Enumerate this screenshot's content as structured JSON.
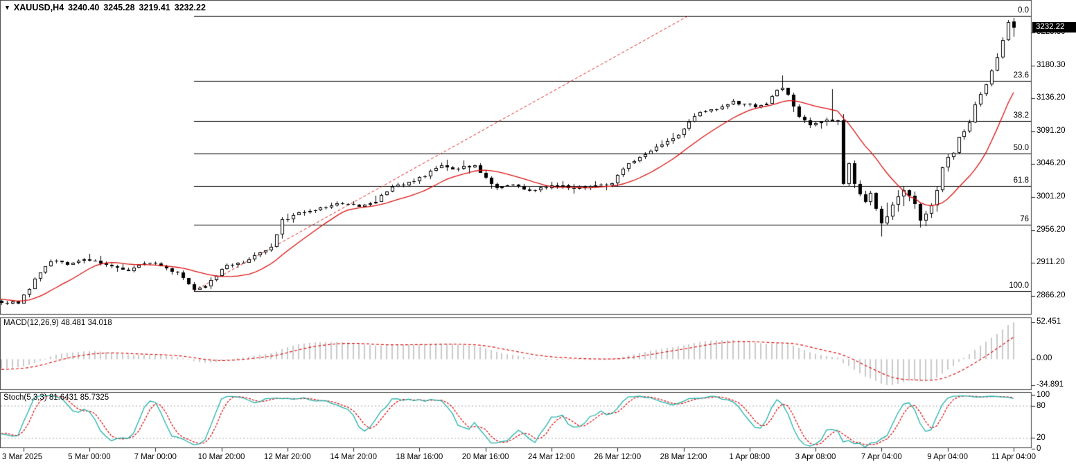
{
  "header": {
    "collapse_icon": "▼",
    "symbol_period": "XAUUSD,H4",
    "open": "3240.40",
    "high": "3245.28",
    "low": "3219.41",
    "close": "3232.22"
  },
  "chart_data": {
    "type": "candlestick",
    "symbol": "XAUUSD",
    "timeframe": "H4",
    "price_tag": "3232.22",
    "last_candle": {
      "open": 3240.4,
      "high": 3245.28,
      "low": 3219.41,
      "close": 3232.22
    },
    "price_axis": {
      "labels": [
        "3225.30",
        "3180.30",
        "3136.20",
        "3091.20",
        "3046.20",
        "3001.20",
        "2956.20",
        "2911.20",
        "2866.20"
      ],
      "ylim": [
        2843.6,
        3270.0
      ]
    },
    "time_axis": {
      "labels": [
        "3 Mar 2025",
        "5 Mar 00:00",
        "7 Mar 00:00",
        "10 Mar 20:00",
        "12 Mar 20:00",
        "14 Mar 20:00",
        "18 Mar 16:00",
        "20 Mar 16:00",
        "24 Mar 12:00",
        "26 Mar 12:00",
        "28 Mar 12:00",
        "1 Apr 08:00",
        "3 Apr 08:00",
        "7 Apr 04:00",
        "9 Apr 04:00",
        "11 Apr 04:00"
      ],
      "bars_per_tick": 12
    },
    "bars": {
      "first": -4,
      "last": 180
    },
    "price_path_anchors": [
      [
        -4,
        2858
      ],
      [
        -1,
        2856
      ],
      [
        0,
        2866
      ],
      [
        3,
        2900
      ],
      [
        5,
        2913
      ],
      [
        8,
        2910
      ],
      [
        11,
        2918
      ],
      [
        14,
        2912
      ],
      [
        17,
        2905
      ],
      [
        19,
        2900
      ],
      [
        22,
        2911
      ],
      [
        25,
        2907
      ],
      [
        28,
        2898
      ],
      [
        30,
        2884
      ],
      [
        31,
        2873
      ],
      [
        33,
        2878
      ],
      [
        35,
        2895
      ],
      [
        37,
        2909
      ],
      [
        40,
        2912
      ],
      [
        42,
        2921
      ],
      [
        45,
        2934
      ],
      [
        47,
        2970
      ],
      [
        50,
        2980
      ],
      [
        54,
        2987
      ],
      [
        58,
        2992
      ],
      [
        61,
        2987
      ],
      [
        64,
        2997
      ],
      [
        67,
        3014
      ],
      [
        70,
        3022
      ],
      [
        73,
        3031
      ],
      [
        76,
        3046
      ],
      [
        78,
        3038
      ],
      [
        80,
        3043
      ],
      [
        82,
        3042
      ],
      [
        84,
        3026
      ],
      [
        86,
        3014
      ],
      [
        89,
        3017
      ],
      [
        92,
        3009
      ],
      [
        95,
        3015
      ],
      [
        98,
        3016
      ],
      [
        101,
        3014
      ],
      [
        104,
        3016
      ],
      [
        107,
        3020
      ],
      [
        109,
        3042
      ],
      [
        112,
        3056
      ],
      [
        115,
        3068
      ],
      [
        117,
        3077
      ],
      [
        119,
        3087
      ],
      [
        121,
        3103
      ],
      [
        123,
        3119
      ],
      [
        125,
        3121
      ],
      [
        127,
        3124
      ],
      [
        129,
        3132
      ],
      [
        131,
        3127
      ],
      [
        133,
        3126
      ],
      [
        135,
        3130
      ],
      [
        137,
        3145
      ],
      [
        138,
        3152
      ],
      [
        139,
        3140
      ],
      [
        141,
        3112
      ],
      [
        143,
        3098
      ],
      [
        145,
        3104
      ],
      [
        147,
        3106
      ],
      [
        148,
        3107
      ],
      [
        149,
        3017
      ],
      [
        150,
        3046
      ],
      [
        151,
        3020
      ],
      [
        152,
        3001
      ],
      [
        153,
        2996
      ],
      [
        154,
        3008
      ],
      [
        155,
        2990
      ],
      [
        156,
        2966
      ],
      [
        157,
        2972
      ],
      [
        158,
        2986
      ],
      [
        159,
        2998
      ],
      [
        160,
        3006
      ],
      [
        161,
        3000
      ],
      [
        162,
        2988
      ],
      [
        163,
        2972
      ],
      [
        164,
        2980
      ],
      [
        165,
        2992
      ],
      [
        166,
        3012
      ],
      [
        167,
        3040
      ],
      [
        168,
        3055
      ],
      [
        169,
        3060
      ],
      [
        170,
        3082
      ],
      [
        171,
        3092
      ],
      [
        172,
        3102
      ],
      [
        173,
        3128
      ],
      [
        174,
        3142
      ],
      [
        175,
        3156
      ],
      [
        176,
        3172
      ],
      [
        177,
        3190
      ],
      [
        178,
        3215
      ],
      [
        179,
        3238
      ],
      [
        180,
        3232.22
      ]
    ],
    "moving_average": {
      "method": "SMA",
      "period": 13,
      "color": "#dd1111"
    },
    "fibonacci": {
      "high": 3248.0,
      "low": 2873.0,
      "start_bar": 31,
      "trend_end_bar": 120.8,
      "levels": [
        {
          "label": "0.0",
          "price": 3248.0
        },
        {
          "label": "23.6",
          "price": 3159.5
        },
        {
          "label": "38.2",
          "price": 3104.8
        },
        {
          "label": "50.0",
          "price": 3060.5
        },
        {
          "label": "61.8",
          "price": 3016.3
        },
        {
          "label": "76",
          "price": 2963.0
        },
        {
          "label": "100.0",
          "price": 2873.0
        }
      ]
    },
    "indicators": {
      "macd": {
        "label": "MACD(12,26,9) 48.481 34.018",
        "fast": 12,
        "slow": 26,
        "signal": 9,
        "values": [
          48.481,
          34.018
        ],
        "axis_labels": [
          "52.451",
          "0.00",
          "-34.891"
        ]
      },
      "stoch": {
        "label": "Stoch(5,3,3) 81.6431 85.7325",
        "k": 5,
        "d": 3,
        "slowing": 3,
        "values": [
          81.6431,
          85.7325
        ],
        "axis_labels": [
          "100",
          "80",
          "20",
          "0"
        ],
        "level_lines": [
          80,
          20
        ]
      }
    },
    "colors": {
      "background": "#ffffff",
      "border": "#3f3f3f",
      "bull_fill": "#ffffff",
      "bear_fill": "#000000",
      "outline": "#000000",
      "ma_line": "#dd1111",
      "fib_line": "#000000",
      "trend_line": "#e02020",
      "macd_hist": "#c9c9c9",
      "signal_line": "#e01010",
      "stoch_k": "#20b2aa",
      "stoch_d": "#e01010",
      "level_line": "#b9b9b9",
      "tag_bg": "#000000",
      "tag_fg": "#ffffff"
    }
  }
}
